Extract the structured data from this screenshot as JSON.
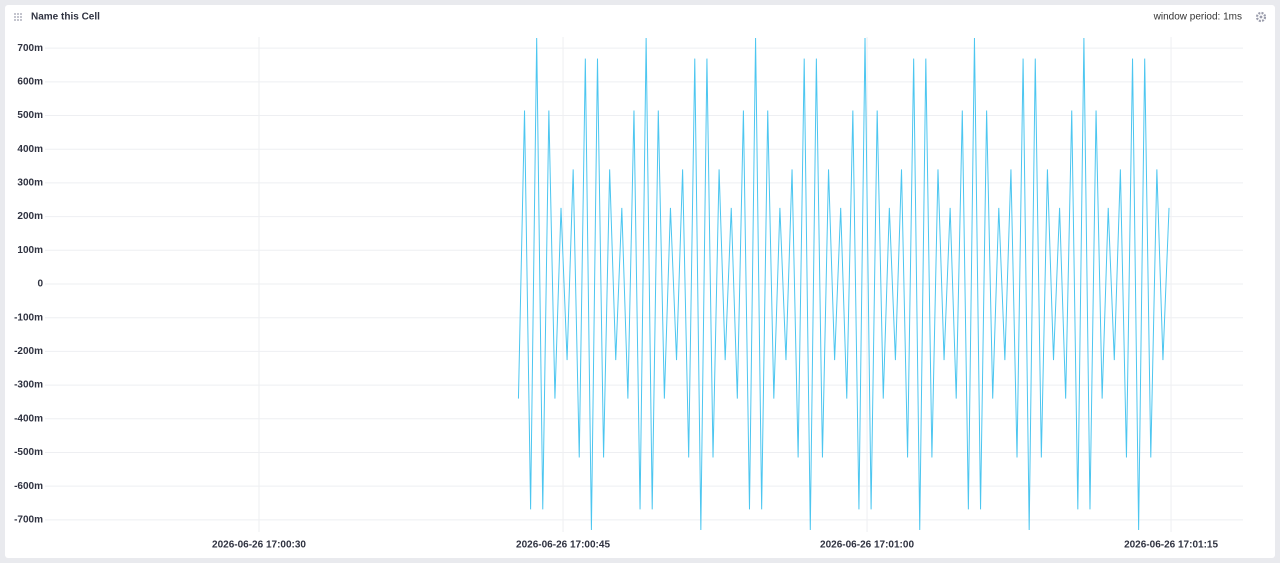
{
  "header": {
    "title": "Name this Cell",
    "window_period": "window period: 1ms"
  },
  "chart_data": {
    "type": "line",
    "color": "#4cc6f0",
    "grid": true,
    "xlim": [
      19.44,
      78.55
    ],
    "xticks": [
      {
        "value": 30,
        "label": "2026-06-26 17:00:30"
      },
      {
        "value": 45,
        "label": "2026-06-26 17:00:45"
      },
      {
        "value": 60,
        "label": "2026-06-26 17:01:00"
      },
      {
        "value": 75,
        "label": "2026-06-26 17:01:15"
      }
    ],
    "ylim": [
      -0.736,
      0.733
    ],
    "yticks": [
      {
        "value": 0.7,
        "label": "700m"
      },
      {
        "value": 0.6,
        "label": "600m"
      },
      {
        "value": 0.5,
        "label": "500m"
      },
      {
        "value": 0.4,
        "label": "400m"
      },
      {
        "value": 0.3,
        "label": "300m"
      },
      {
        "value": 0.2,
        "label": "200m"
      },
      {
        "value": 0.1,
        "label": "100m"
      },
      0,
      {
        "value": -0.1,
        "label": "-100m"
      },
      {
        "value": -0.2,
        "label": "-200m"
      },
      {
        "value": -0.3,
        "label": "-300m"
      },
      {
        "value": -0.4,
        "label": "-400m"
      },
      {
        "value": -0.5,
        "label": "-500m"
      },
      {
        "value": -0.6,
        "label": "-600m"
      },
      {
        "value": -0.7,
        "label": "-700m"
      }
    ],
    "x": [
      42.8,
      43.1,
      43.4,
      43.7,
      44,
      44.3,
      44.6,
      44.9,
      45.2,
      45.5,
      45.8,
      46.1,
      46.4,
      46.7,
      47,
      47.3,
      47.6,
      47.9,
      48.2,
      48.5,
      48.8,
      49.1,
      49.4,
      49.7,
      50,
      50.3,
      50.6,
      50.9,
      51.2,
      51.5,
      51.8,
      52.1,
      52.4,
      52.7,
      53,
      53.3,
      53.6,
      53.9,
      54.2,
      54.5,
      54.8,
      55.1,
      55.4,
      55.7,
      56,
      56.3,
      56.6,
      56.9,
      57.2,
      57.5,
      57.8,
      58.1,
      58.4,
      58.7,
      59,
      59.3,
      59.6,
      59.9,
      60.2,
      60.5,
      60.8,
      61.1,
      61.4,
      61.7,
      62,
      62.3,
      62.6,
      62.9,
      63.2,
      63.5,
      63.8,
      64.1,
      64.4,
      64.7,
      65,
      65.3,
      65.6,
      65.9,
      66.2,
      66.5,
      66.8,
      67.1,
      67.4,
      67.7,
      68,
      68.3,
      68.6,
      68.9,
      69.2,
      69.5,
      69.8,
      70.1,
      70.4,
      70.7,
      71,
      71.3,
      71.6,
      71.9,
      72.2,
      72.5,
      72.8,
      73.1,
      73.4,
      73.7,
      74,
      74.3,
      74.6,
      74.9
    ],
    "values": [
      -0.34,
      0.515,
      -0.669,
      0.73,
      -0.669,
      0.515,
      -0.34,
      0.226,
      -0.226,
      0.34,
      -0.515,
      0.669,
      -0.73,
      0.669,
      -0.515,
      0.34,
      -0.226,
      0.226,
      -0.34,
      0.515,
      -0.669,
      0.73,
      -0.669,
      0.515,
      -0.34,
      0.226,
      -0.226,
      0.34,
      -0.515,
      0.669,
      -0.73,
      0.669,
      -0.515,
      0.34,
      -0.226,
      0.226,
      -0.34,
      0.515,
      -0.669,
      0.73,
      -0.669,
      0.515,
      -0.34,
      0.226,
      -0.226,
      0.34,
      -0.515,
      0.669,
      -0.73,
      0.669,
      -0.515,
      0.34,
      -0.226,
      0.226,
      -0.34,
      0.515,
      -0.669,
      0.73,
      -0.669,
      0.515,
      -0.34,
      0.226,
      -0.226,
      0.34,
      -0.515,
      0.669,
      -0.73,
      0.669,
      -0.515,
      0.34,
      -0.226,
      0.226,
      -0.34,
      0.515,
      -0.669,
      0.73,
      -0.669,
      0.515,
      -0.34,
      0.226,
      -0.226,
      0.34,
      -0.515,
      0.669,
      -0.73,
      0.669,
      -0.515,
      0.34,
      -0.226,
      0.226,
      -0.34,
      0.515,
      -0.669,
      0.73,
      -0.669,
      0.515,
      -0.34,
      0.226,
      -0.226,
      0.34,
      -0.515,
      0.669,
      -0.73,
      0.669,
      -0.515,
      0.34,
      -0.226,
      0.226
    ]
  }
}
